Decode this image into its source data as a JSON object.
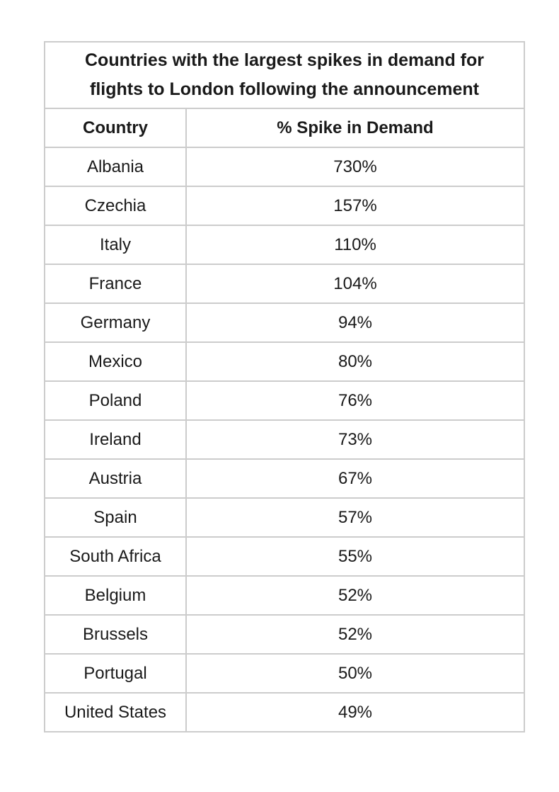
{
  "table": {
    "title_line1": "Countries with the largest spikes in demand for",
    "title_line2": "flights to London following the announcement",
    "columns": {
      "country": "Country",
      "spike": "% Spike in Demand"
    },
    "rows": [
      {
        "country": "Albania",
        "spike": "730%"
      },
      {
        "country": "Czechia",
        "spike": "157%"
      },
      {
        "country": "Italy",
        "spike": "110%"
      },
      {
        "country": "France",
        "spike": "104%"
      },
      {
        "country": "Germany",
        "spike": "94%"
      },
      {
        "country": "Mexico",
        "spike": "80%"
      },
      {
        "country": "Poland",
        "spike": "76%"
      },
      {
        "country": "Ireland",
        "spike": "73%"
      },
      {
        "country": "Austria",
        "spike": "67%"
      },
      {
        "country": "Spain",
        "spike": "57%"
      },
      {
        "country": "South Africa",
        "spike": "55%"
      },
      {
        "country": "Belgium",
        "spike": "52%"
      },
      {
        "country": "Brussels",
        "spike": "52%"
      },
      {
        "country": "Portugal",
        "spike": "50%"
      },
      {
        "country": "United States",
        "spike": "49%"
      }
    ],
    "colors": {
      "border": "#cccccc",
      "text": "#1a1a1a",
      "background": "#ffffff"
    }
  },
  "chart_data": {
    "type": "table",
    "title": "Countries with the largest spikes in demand for flights to London following the announcement",
    "columns": [
      "Country",
      "% Spike in Demand"
    ],
    "categories": [
      "Albania",
      "Czechia",
      "Italy",
      "France",
      "Germany",
      "Mexico",
      "Poland",
      "Ireland",
      "Austria",
      "Spain",
      "South Africa",
      "Belgium",
      "Brussels",
      "Portugal",
      "United States"
    ],
    "values_percent": [
      730,
      157,
      110,
      104,
      94,
      80,
      76,
      73,
      67,
      57,
      55,
      52,
      52,
      50,
      49
    ]
  }
}
